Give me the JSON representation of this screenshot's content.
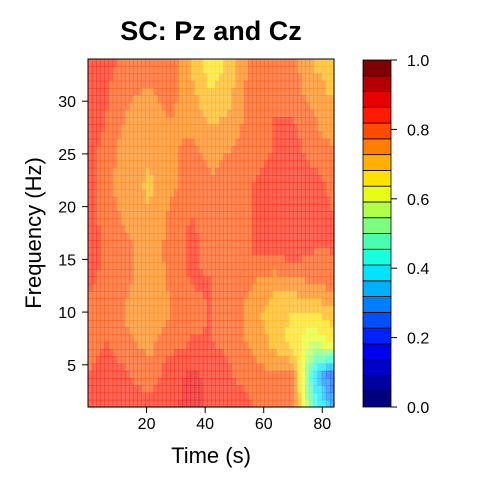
{
  "chart_data": {
    "type": "heatmap",
    "title": "SC: Pz and Cz",
    "xlabel": "Time (s)",
    "ylabel": "Frequency (Hz)",
    "xlim": [
      0,
      84
    ],
    "ylim": [
      1,
      34
    ],
    "x_ticks": [
      20,
      40,
      60,
      80
    ],
    "y_ticks": [
      5,
      10,
      15,
      20,
      25,
      30
    ],
    "colorbar": {
      "range": [
        0,
        1
      ],
      "ticks": [
        "0.0",
        "0.2",
        "0.4",
        "0.6",
        "0.8",
        "1.0"
      ],
      "levels": 20,
      "colors": [
        "#00007f",
        "#00009f",
        "#0000c8",
        "#0000f0",
        "#0022ff",
        "#0050ff",
        "#007eff",
        "#00b0ff",
        "#00e4ff",
        "#1affe0",
        "#48ffb0",
        "#7cff7c",
        "#b0ff48",
        "#e4ff14",
        "#ffe000",
        "#ffb000",
        "#ff7e00",
        "#ff4a00",
        "#ff1a00",
        "#e60000",
        "#b40000",
        "#7f0000"
      ]
    },
    "x": [
      0,
      7,
      14,
      21,
      28,
      35,
      42,
      49,
      56,
      63,
      70,
      77,
      84
    ],
    "y": [
      1,
      4,
      7,
      10,
      13,
      16,
      19,
      22,
      25,
      28,
      31,
      34
    ],
    "z": [
      [
        0.82,
        0.86,
        0.86,
        0.84,
        0.86,
        0.87,
        0.86,
        0.84,
        0.82,
        0.82,
        0.8,
        0.45,
        0.3
      ],
      [
        0.82,
        0.85,
        0.82,
        0.78,
        0.85,
        0.87,
        0.86,
        0.82,
        0.8,
        0.78,
        0.78,
        0.4,
        0.2
      ],
      [
        0.8,
        0.82,
        0.78,
        0.76,
        0.8,
        0.82,
        0.82,
        0.8,
        0.76,
        0.72,
        0.66,
        0.58,
        0.66
      ],
      [
        0.8,
        0.8,
        0.76,
        0.74,
        0.77,
        0.81,
        0.82,
        0.8,
        0.75,
        0.7,
        0.68,
        0.68,
        0.72
      ],
      [
        0.83,
        0.8,
        0.78,
        0.74,
        0.78,
        0.82,
        0.82,
        0.8,
        0.78,
        0.75,
        0.76,
        0.78,
        0.8
      ],
      [
        0.85,
        0.8,
        0.78,
        0.74,
        0.79,
        0.83,
        0.8,
        0.8,
        0.82,
        0.84,
        0.85,
        0.82,
        0.82
      ],
      [
        0.84,
        0.79,
        0.76,
        0.73,
        0.78,
        0.82,
        0.8,
        0.79,
        0.82,
        0.85,
        0.86,
        0.84,
        0.82
      ],
      [
        0.84,
        0.78,
        0.74,
        0.72,
        0.76,
        0.8,
        0.78,
        0.78,
        0.82,
        0.84,
        0.86,
        0.84,
        0.8
      ],
      [
        0.84,
        0.79,
        0.74,
        0.73,
        0.76,
        0.79,
        0.76,
        0.78,
        0.8,
        0.82,
        0.84,
        0.8,
        0.78
      ],
      [
        0.85,
        0.81,
        0.76,
        0.75,
        0.77,
        0.76,
        0.72,
        0.74,
        0.8,
        0.82,
        0.82,
        0.78,
        0.74
      ],
      [
        0.86,
        0.82,
        0.78,
        0.77,
        0.79,
        0.74,
        0.68,
        0.72,
        0.8,
        0.81,
        0.8,
        0.74,
        0.72
      ],
      [
        0.86,
        0.83,
        0.8,
        0.78,
        0.8,
        0.72,
        0.64,
        0.7,
        0.79,
        0.8,
        0.78,
        0.72,
        0.72
      ]
    ]
  }
}
